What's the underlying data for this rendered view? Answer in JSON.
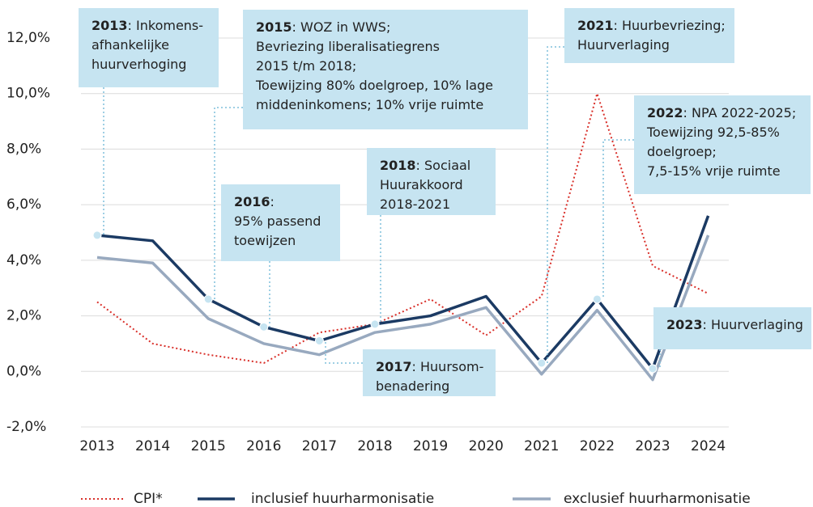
{
  "chart_data": {
    "type": "line",
    "categories": [
      "2013",
      "2014",
      "2015",
      "2016",
      "2017",
      "2018",
      "2019",
      "2020",
      "2021",
      "2022",
      "2023",
      "2024"
    ],
    "series": [
      {
        "name": "CPI*",
        "color": "#d9302a",
        "dash": "dotted",
        "values": [
          2.5,
          1.0,
          0.6,
          0.3,
          1.4,
          1.7,
          2.6,
          1.3,
          2.7,
          10.0,
          3.8,
          2.8
        ]
      },
      {
        "name": "inclusief huurharmonisatie",
        "color": "#1b3a63",
        "values": [
          4.9,
          4.7,
          2.6,
          1.6,
          1.1,
          1.7,
          2.0,
          2.7,
          0.3,
          2.6,
          0.1,
          5.6
        ]
      },
      {
        "name": "exclusief huurharmonisatie",
        "color": "#98a9bf",
        "values": [
          4.1,
          3.9,
          1.9,
          1.0,
          0.6,
          1.4,
          1.7,
          2.3,
          -0.1,
          2.2,
          -0.3,
          4.9
        ]
      }
    ],
    "ylim": [
      -2,
      12
    ],
    "yticks": [
      {
        "value": -2,
        "label": "-2,0%"
      },
      {
        "value": 0,
        "label": "0,0%"
      },
      {
        "value": 2,
        "label": "2,0%"
      },
      {
        "value": 4,
        "label": "4,0%"
      },
      {
        "value": 6,
        "label": "6,0%"
      },
      {
        "value": 8,
        "label": "8,0%"
      },
      {
        "value": 10,
        "label": "10,0%"
      },
      {
        "value": 12,
        "label": "12,0%"
      }
    ],
    "grid": true,
    "annotation_color": "#c6e4f1",
    "annotations": [
      {
        "year": "2013",
        "lines": [
          ": Inkomens-",
          "afhankelijke",
          "huurverhoging"
        ]
      },
      {
        "year": "2015",
        "lines": [
          ": WOZ in WWS;",
          "Bevriezing liberalisatiegrens",
          "2015 t/m 2018;",
          "Toewijzing 80% doelgroep, 10% lage",
          "middeninkomens; 10% vrije ruimte"
        ]
      },
      {
        "year": "2016",
        "lines": [
          ":",
          "95% passend",
          "toewijzen"
        ]
      },
      {
        "year": "2017",
        "lines": [
          ": Huursom-",
          "benadering"
        ]
      },
      {
        "year": "2018",
        "lines": [
          ": Sociaal",
          "Huurakkoord",
          "2018-2021"
        ]
      },
      {
        "year": "2021",
        "lines": [
          ": Huurbevriezing;",
          "Huurverlaging"
        ]
      },
      {
        "year": "2022",
        "lines": [
          ": NPA 2022-2025;",
          "Toewijzing 92,5-85%",
          "doelgroep;",
          "7,5-15% vrije ruimte"
        ]
      },
      {
        "year": "2023",
        "lines": [
          ": Huurverlaging"
        ]
      }
    ]
  }
}
